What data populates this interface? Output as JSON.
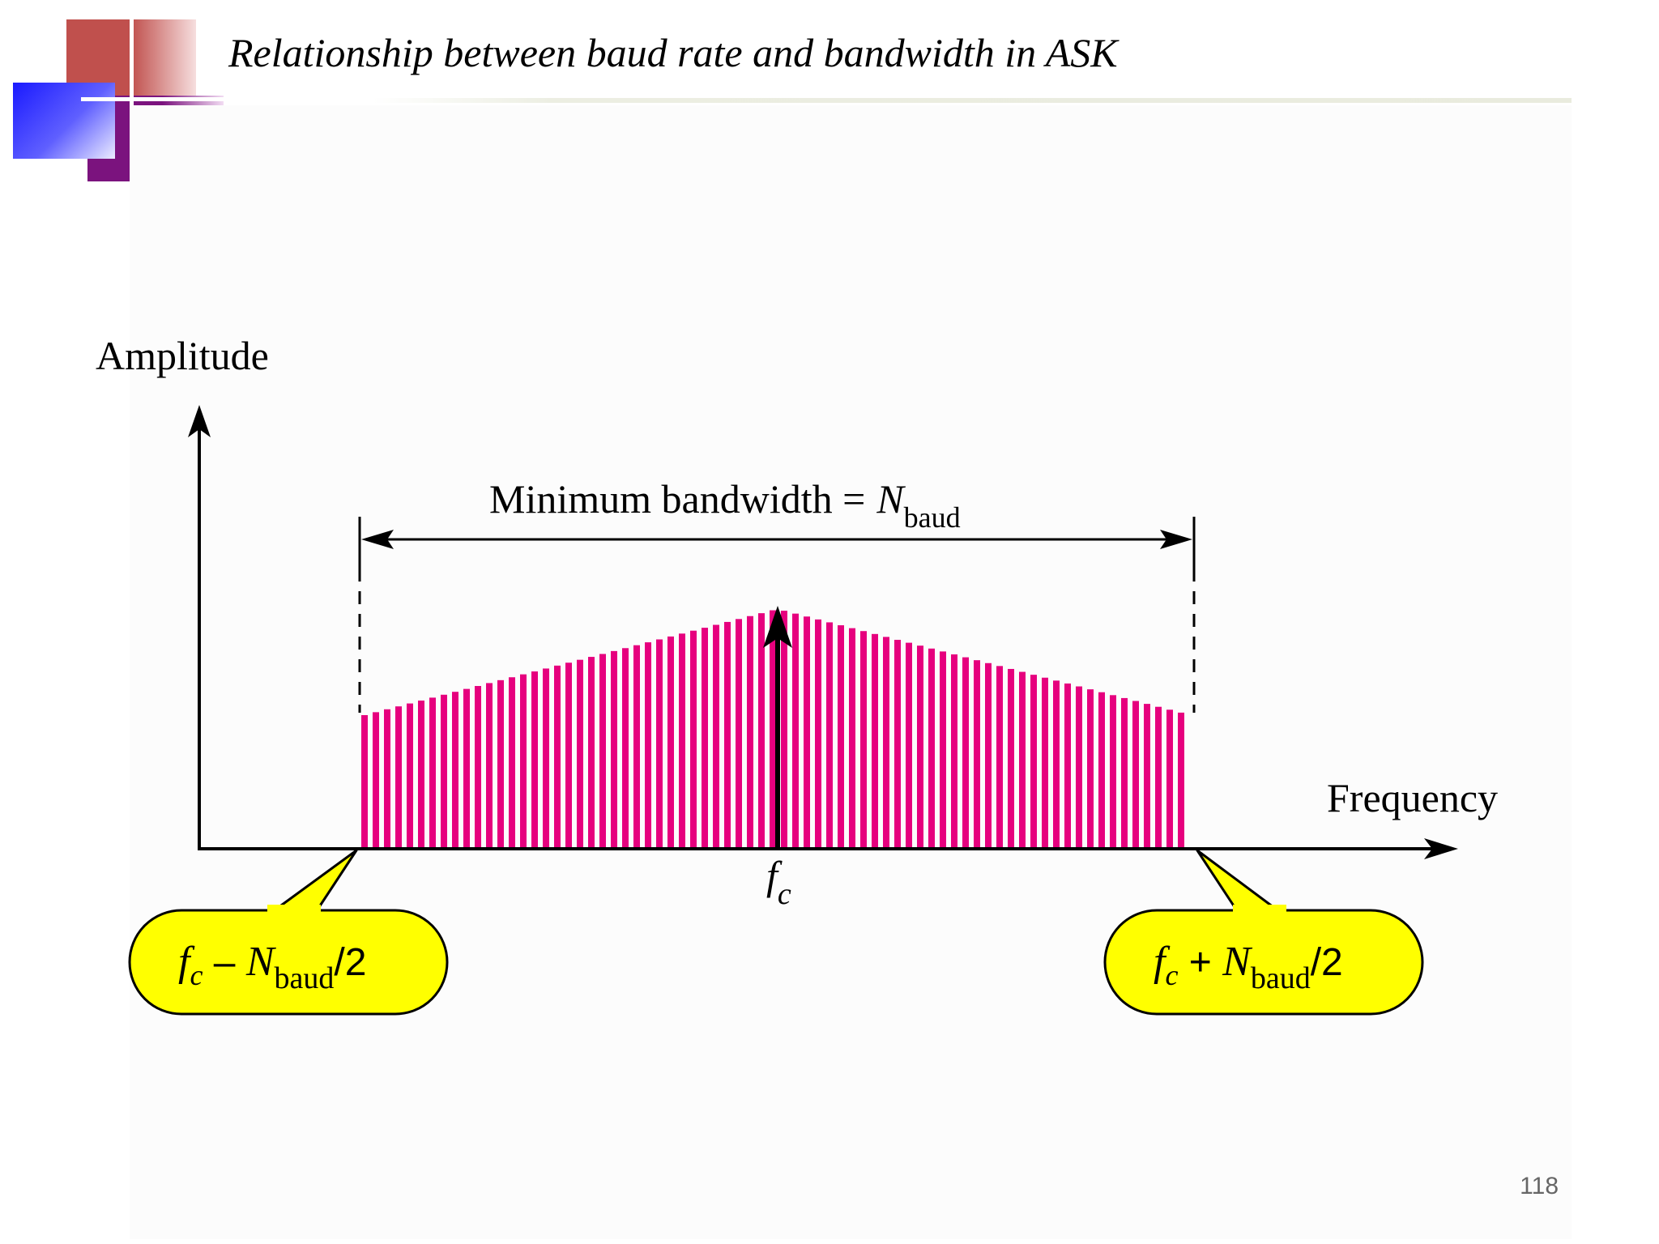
{
  "slide": {
    "title": "Relationship between baud rate and bandwidth in ASK",
    "page_number": "118"
  },
  "diagram": {
    "y_axis_label": "Amplitude",
    "x_axis_label": "Frequency",
    "bandwidth_label": "Minimum bandwidth =",
    "bandwidth_var": "N",
    "bandwidth_sub": "baud",
    "center_f": "f",
    "center_sub": "c",
    "left_callout": {
      "f": "f",
      "c": "c",
      "op": " – ",
      "N": "N",
      "sub": "baud",
      "tail": "/2"
    },
    "right_callout": {
      "f": "f",
      "c": "c",
      "op": " + ",
      "N": "N",
      "sub": "baud",
      "tail": "/2"
    },
    "spectrum_color": "#e6007e",
    "callout_color": "#ffff00"
  }
}
